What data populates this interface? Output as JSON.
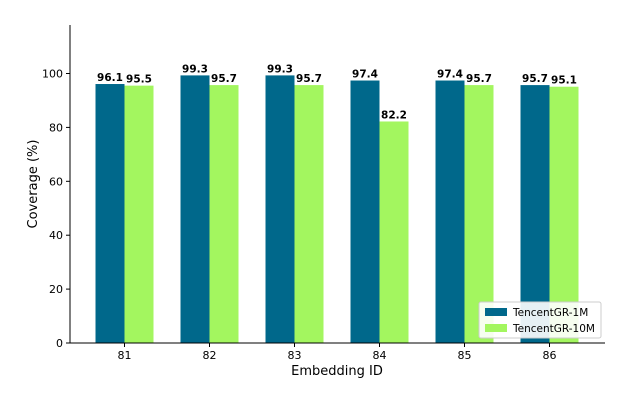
{
  "chart_data": {
    "type": "bar",
    "categories": [
      "81",
      "82",
      "83",
      "84",
      "85",
      "86"
    ],
    "series": [
      {
        "name": "TencentGR-1M",
        "values": [
          96.1,
          99.3,
          99.3,
          97.4,
          97.4,
          95.7
        ],
        "labels": [
          "96.1",
          "99.3",
          "99.3",
          "97.4",
          "97.4",
          "95.7"
        ],
        "color": "#00688b"
      },
      {
        "name": "TencentGR-10M",
        "values": [
          95.5,
          95.7,
          95.7,
          82.2,
          95.7,
          95.1
        ],
        "labels": [
          "95.5",
          "95.7",
          "95.7",
          "82.2",
          "95.7",
          "95.1"
        ],
        "color": "#a3f65f"
      }
    ],
    "xlabel": "Embedding ID",
    "ylabel": "Coverage (%)",
    "ylim": [
      0,
      118
    ],
    "yticks": [
      0,
      20,
      40,
      60,
      80,
      100
    ],
    "ytick_labels": [
      "0",
      "20",
      "40",
      "60",
      "80",
      "100"
    ],
    "grid": false,
    "legend_position": "lower-right"
  }
}
